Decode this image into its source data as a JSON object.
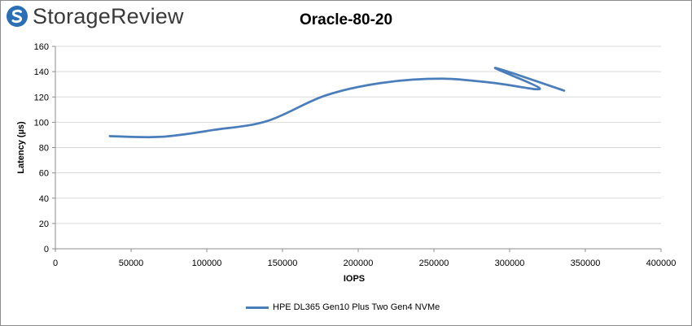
{
  "brand": {
    "name": "StorageReview",
    "icon": "storagereview-logo-icon",
    "color": "#2b6fb6"
  },
  "chart_data": {
    "type": "line",
    "title": "Oracle-80-20",
    "xlabel": "IOPS",
    "ylabel": "Latency (µs)",
    "xlim": [
      0,
      400000
    ],
    "ylim": [
      0,
      160
    ],
    "xticks": [
      0,
      50000,
      100000,
      150000,
      200000,
      250000,
      300000,
      350000,
      400000
    ],
    "yticks": [
      0,
      20,
      40,
      60,
      80,
      100,
      120,
      140,
      160
    ],
    "grid": true,
    "legend_position": "bottom",
    "series": [
      {
        "name": "HPE DL365 Gen10 Plus Two Gen4 NVMe",
        "color": "#4a7ebb",
        "x": [
          36000,
          70000,
          105000,
          140000,
          178000,
          215000,
          255000,
          290000,
          320000,
          290500,
          336000
        ],
        "y": [
          89,
          88.5,
          94,
          101,
          121,
          131,
          134.5,
          131,
          126.5,
          143,
          125
        ]
      }
    ]
  }
}
